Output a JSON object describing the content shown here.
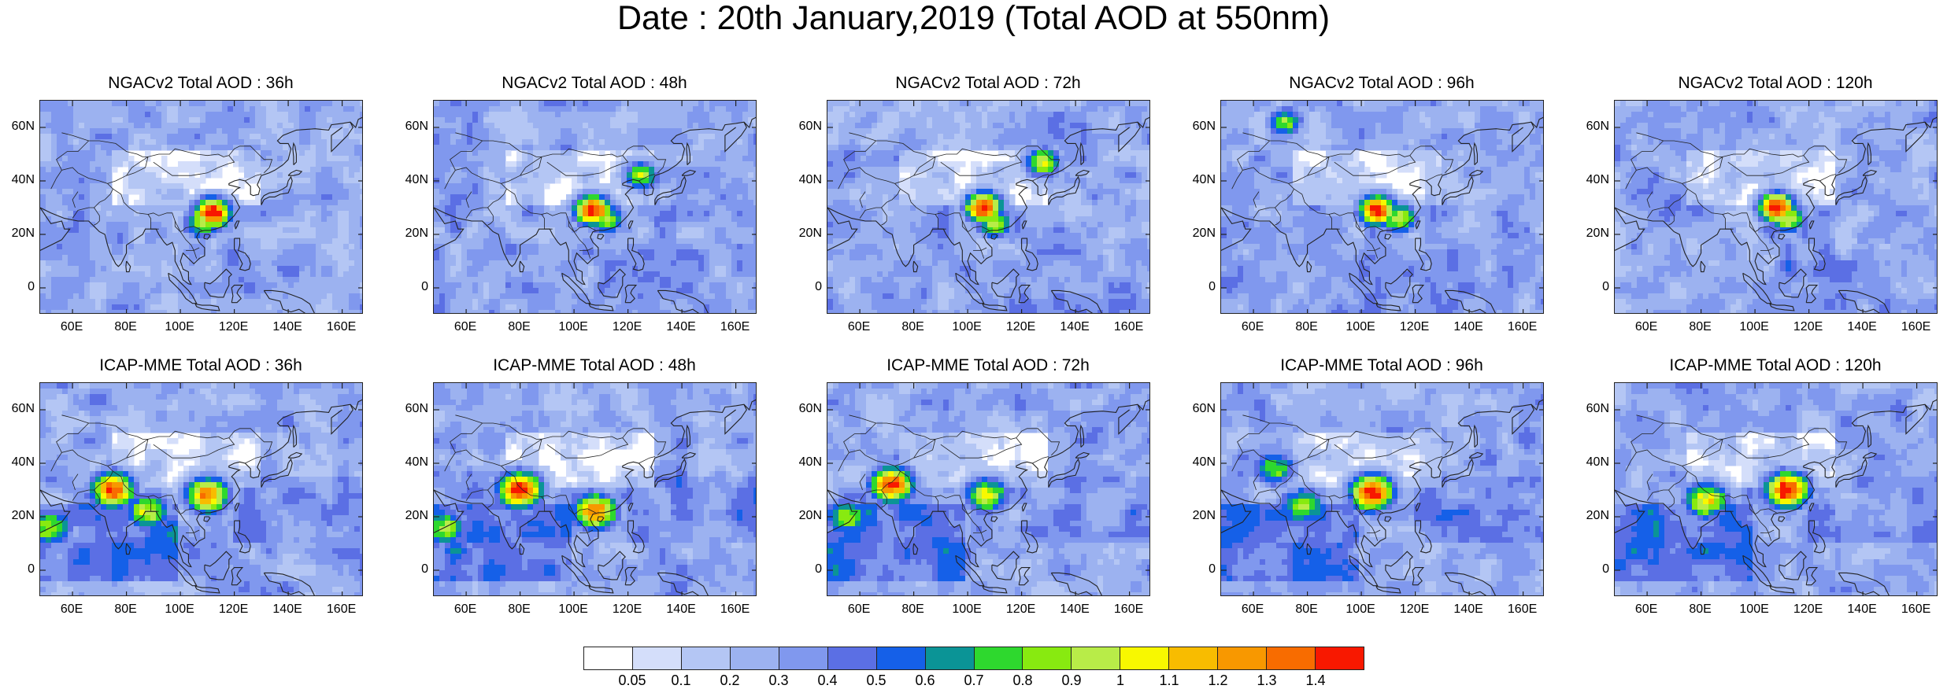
{
  "title": "Date : 20th January,2019 (Total AOD at 550nm)",
  "panels": [
    {
      "title": "NGACv2 Total AOD : 36h",
      "model": "NGACv2",
      "lead": "36h",
      "hotspots": [
        {
          "lat": 28,
          "lon": 112,
          "value": 1.4
        },
        {
          "lat": 24,
          "lon": 108,
          "value": 0.8
        }
      ]
    },
    {
      "title": "NGACv2 Total AOD : 48h",
      "model": "NGACv2",
      "lead": "48h",
      "hotspots": [
        {
          "lat": 29,
          "lon": 107,
          "value": 1.4
        },
        {
          "lat": 42,
          "lon": 125,
          "value": 0.8
        },
        {
          "lat": 26,
          "lon": 112,
          "value": 0.8
        }
      ]
    },
    {
      "title": "NGACv2 Total AOD : 72h",
      "model": "NGACv2",
      "lead": "72h",
      "hotspots": [
        {
          "lat": 30,
          "lon": 106,
          "value": 1.4
        },
        {
          "lat": 47,
          "lon": 128,
          "value": 0.9
        },
        {
          "lat": 24,
          "lon": 110,
          "value": 0.8
        }
      ]
    },
    {
      "title": "NGACv2 Total AOD : 96h",
      "model": "NGACv2",
      "lead": "96h",
      "hotspots": [
        {
          "lat": 29,
          "lon": 106,
          "value": 1.4
        },
        {
          "lat": 62,
          "lon": 72,
          "value": 0.7
        },
        {
          "lat": 26,
          "lon": 114,
          "value": 0.9
        }
      ]
    },
    {
      "title": "NGACv2 Total AOD : 120h",
      "model": "NGACv2",
      "lead": "120h",
      "hotspots": [
        {
          "lat": 30,
          "lon": 108,
          "value": 1.4
        },
        {
          "lat": 26,
          "lon": 112,
          "value": 0.9
        }
      ]
    },
    {
      "title": "ICAP-MME Total AOD : 36h",
      "model": "ICAP-MME",
      "lead": "36h",
      "hotspots": [
        {
          "lat": 30,
          "lon": 75,
          "value": 1.3
        },
        {
          "lat": 28,
          "lon": 110,
          "value": 1.2
        },
        {
          "lat": 16,
          "lon": 52,
          "value": 0.8
        },
        {
          "lat": 22,
          "lon": 88,
          "value": 0.9
        }
      ]
    },
    {
      "title": "ICAP-MME Total AOD : 48h",
      "model": "ICAP-MME",
      "lead": "48h",
      "hotspots": [
        {
          "lat": 30,
          "lon": 80,
          "value": 1.4
        },
        {
          "lat": 22,
          "lon": 108,
          "value": 1.2
        },
        {
          "lat": 16,
          "lon": 52,
          "value": 0.8
        }
      ]
    },
    {
      "title": "ICAP-MME Total AOD : 72h",
      "model": "ICAP-MME",
      "lead": "72h",
      "hotspots": [
        {
          "lat": 32,
          "lon": 72,
          "value": 1.3
        },
        {
          "lat": 28,
          "lon": 107,
          "value": 0.9
        },
        {
          "lat": 20,
          "lon": 55,
          "value": 0.8
        }
      ]
    },
    {
      "title": "ICAP-MME Total AOD : 96h",
      "model": "ICAP-MME",
      "lead": "96h",
      "hotspots": [
        {
          "lat": 29,
          "lon": 104,
          "value": 1.4
        },
        {
          "lat": 24,
          "lon": 78,
          "value": 0.8
        },
        {
          "lat": 38,
          "lon": 68,
          "value": 0.7
        }
      ]
    },
    {
      "title": "ICAP-MME Total AOD : 120h",
      "model": "ICAP-MME",
      "lead": "120h",
      "hotspots": [
        {
          "lat": 30,
          "lon": 112,
          "value": 1.4
        },
        {
          "lat": 26,
          "lon": 82,
          "value": 1.0
        }
      ]
    }
  ],
  "axes": {
    "lat_ticks": [
      "60N",
      "40N",
      "20N",
      "0"
    ],
    "lat_values": [
      60,
      40,
      20,
      0
    ],
    "lon_ticks": [
      "60E",
      "80E",
      "100E",
      "120E",
      "140E",
      "160E"
    ],
    "lon_values": [
      60,
      80,
      100,
      120,
      140,
      160
    ],
    "lon_range": [
      48,
      168
    ],
    "lat_range": [
      -10,
      70
    ]
  },
  "colorbar": {
    "labels": [
      "0.05",
      "0.1",
      "0.2",
      "0.3",
      "0.4",
      "0.5",
      "0.6",
      "0.7",
      "0.8",
      "0.9",
      "1",
      "1.1",
      "1.2",
      "1.3",
      "1.4"
    ],
    "colors": [
      "#ffffff",
      "#d4defa",
      "#b4c6f4",
      "#9cb2f0",
      "#8098ee",
      "#5b6fe4",
      "#1560e8",
      "#0b9496",
      "#2ed82e",
      "#88ea10",
      "#b8ec48",
      "#f8f800",
      "#f8bc00",
      "#f89800",
      "#f86c00",
      "#f81800"
    ]
  }
}
